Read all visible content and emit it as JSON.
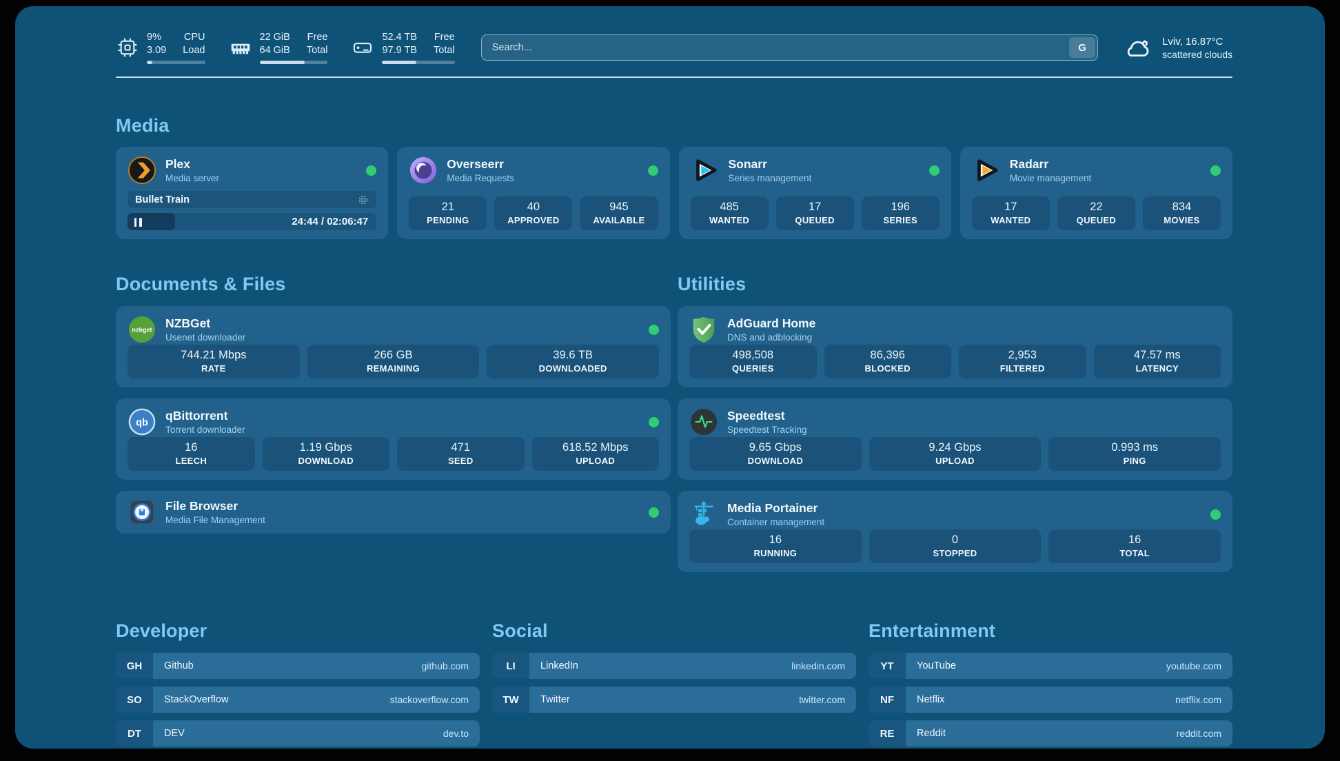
{
  "colors": {
    "accent_green": "#31cd72",
    "page_bg": "#0f5278",
    "card_bg": "#21618c"
  },
  "header": {
    "cpu": {
      "v1": "9%",
      "v2": "3.09",
      "l1": "CPU",
      "l2": "Load",
      "progress_pct": 9
    },
    "ram": {
      "v1": "22 GiB",
      "v2": "64 GiB",
      "l1": "Free",
      "l2": "Total",
      "progress_pct": 66
    },
    "disk": {
      "v1": "52.4 TB",
      "v2": "97.9 TB",
      "l1": "Free",
      "l2": "Total",
      "progress_pct": 47
    },
    "search": {
      "placeholder": "Search...",
      "engine_button": "G"
    },
    "weather": {
      "location": "Lviv, 16.87°C",
      "condition": "scattered clouds"
    }
  },
  "media": {
    "title": "Media",
    "plex": {
      "name": "Plex",
      "subtitle": "Media server",
      "now_playing": "Bullet Train",
      "time": "24:44 / 02:06:47",
      "progress_pct": 19
    },
    "overseerr": {
      "name": "Overseerr",
      "subtitle": "Media Requests",
      "stats": [
        {
          "value": "21",
          "label": "PENDING"
        },
        {
          "value": "40",
          "label": "APPROVED"
        },
        {
          "value": "945",
          "label": "AVAILABLE"
        }
      ]
    },
    "sonarr": {
      "name": "Sonarr",
      "subtitle": "Series management",
      "stats": [
        {
          "value": "485",
          "label": "WANTED"
        },
        {
          "value": "17",
          "label": "QUEUED"
        },
        {
          "value": "196",
          "label": "SERIES"
        }
      ]
    },
    "radarr": {
      "name": "Radarr",
      "subtitle": "Movie management",
      "stats": [
        {
          "value": "17",
          "label": "WANTED"
        },
        {
          "value": "22",
          "label": "QUEUED"
        },
        {
          "value": "834",
          "label": "MOVIES"
        }
      ]
    }
  },
  "documents": {
    "title": "Documents & Files",
    "nzbget": {
      "name": "NZBGet",
      "subtitle": "Usenet downloader",
      "stats": [
        {
          "value": "744.21 Mbps",
          "label": "RATE"
        },
        {
          "value": "266 GB",
          "label": "REMAINING"
        },
        {
          "value": "39.6 TB",
          "label": "DOWNLOADED"
        }
      ]
    },
    "qbittorrent": {
      "name": "qBittorrent",
      "subtitle": "Torrent downloader",
      "stats": [
        {
          "value": "16",
          "label": "LEECH"
        },
        {
          "value": "1.19 Gbps",
          "label": "DOWNLOAD"
        },
        {
          "value": "471",
          "label": "SEED"
        },
        {
          "value": "618.52 Mbps",
          "label": "UPLOAD"
        }
      ]
    },
    "filebrowser": {
      "name": "File Browser",
      "subtitle": "Media File Management"
    }
  },
  "utilities": {
    "title": "Utilities",
    "adguard": {
      "name": "AdGuard Home",
      "subtitle": "DNS and adblocking",
      "stats": [
        {
          "value": "498,508",
          "label": "QUERIES"
        },
        {
          "value": "86,396",
          "label": "BLOCKED"
        },
        {
          "value": "2,953",
          "label": "FILTERED"
        },
        {
          "value": "47.57 ms",
          "label": "LATENCY"
        }
      ]
    },
    "speedtest": {
      "name": "Speedtest",
      "subtitle": "Speedtest Tracking",
      "stats": [
        {
          "value": "9.65 Gbps",
          "label": "DOWNLOAD"
        },
        {
          "value": "9.24 Gbps",
          "label": "UPLOAD"
        },
        {
          "value": "0.993 ms",
          "label": "PING"
        }
      ]
    },
    "portainer": {
      "name": "Media Portainer",
      "subtitle": "Container management",
      "stats": [
        {
          "value": "16",
          "label": "RUNNING"
        },
        {
          "value": "0",
          "label": "STOPPED"
        },
        {
          "value": "16",
          "label": "TOTAL"
        }
      ]
    }
  },
  "bookmarks": {
    "developer": {
      "title": "Developer",
      "links": [
        {
          "abbr": "GH",
          "name": "Github",
          "url": "github.com"
        },
        {
          "abbr": "SO",
          "name": "StackOverflow",
          "url": "stackoverflow.com"
        },
        {
          "abbr": "DT",
          "name": "DEV",
          "url": "dev.to"
        }
      ]
    },
    "social": {
      "title": "Social",
      "links": [
        {
          "abbr": "LI",
          "name": "LinkedIn",
          "url": "linkedin.com"
        },
        {
          "abbr": "TW",
          "name": "Twitter",
          "url": "twitter.com"
        }
      ]
    },
    "entertainment": {
      "title": "Entertainment",
      "links": [
        {
          "abbr": "YT",
          "name": "YouTube",
          "url": "youtube.com"
        },
        {
          "abbr": "NF",
          "name": "Netflix",
          "url": "netflix.com"
        },
        {
          "abbr": "RE",
          "name": "Reddit",
          "url": "reddit.com"
        }
      ]
    }
  }
}
